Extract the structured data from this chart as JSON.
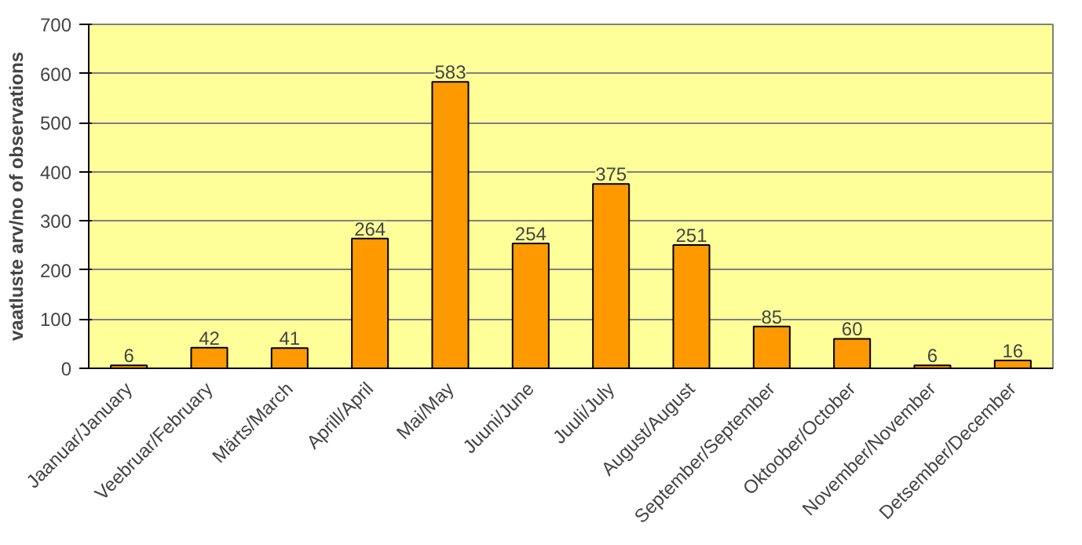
{
  "chart_data": {
    "type": "bar",
    "ylabel": "vaatluste arv/no of observations",
    "categories": [
      "Jaanuar/January",
      "Veebruar/February",
      "Märts/March",
      "Aprill/April",
      "Mai/May",
      "Juuni/June",
      "Juuli/July",
      "August/August",
      "September/September",
      "Oktoober/October",
      "November/November",
      "Detsember/December"
    ],
    "values": [
      6,
      42,
      41,
      264,
      583,
      254,
      375,
      251,
      85,
      60,
      6,
      16
    ],
    "color": "#ff9900",
    "ylim": [
      0,
      700
    ],
    "yticks": [
      0,
      100,
      200,
      300,
      400,
      500,
      600,
      700
    ],
    "grid": "y",
    "data_labels": true
  }
}
